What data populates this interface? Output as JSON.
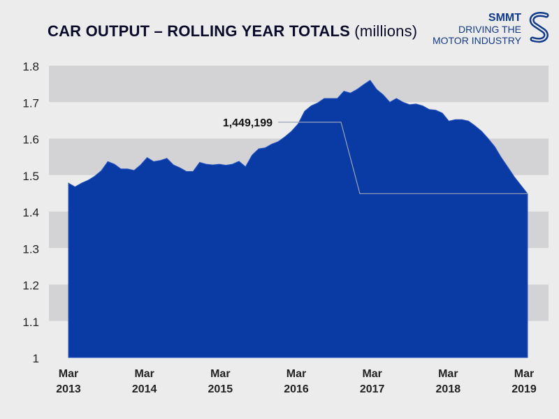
{
  "header": {
    "title_bold": "CAR OUTPUT – ROLLING YEAR TOTALS",
    "title_light": "(millions)"
  },
  "logo": {
    "name": "SMMT",
    "tagline_line1": "DRIVING THE",
    "tagline_line2": "MOTOR INDUSTRY"
  },
  "colors": {
    "area": "#0a3aa3",
    "band": "#d3d3d6",
    "background": "#ececec",
    "axis_text": "#222222",
    "logo": "#123a8c"
  },
  "chart_data": {
    "type": "area",
    "title": "CAR OUTPUT – ROLLING YEAR TOTALS (millions)",
    "ylim": [
      1.0,
      1.8
    ],
    "yticks": [
      "1",
      "1.1",
      "1.2",
      "1.3",
      "1.4",
      "1.5",
      "1.6",
      "1.7",
      "1.8"
    ],
    "xticks": [
      {
        "line1": "Mar",
        "line2": "2013"
      },
      {
        "line1": "Mar",
        "line2": "2014"
      },
      {
        "line1": "Mar",
        "line2": "2015"
      },
      {
        "line1": "Mar",
        "line2": "2016"
      },
      {
        "line1": "Mar",
        "line2": "2017"
      },
      {
        "line1": "Mar",
        "line2": "2018"
      },
      {
        "line1": "Mar",
        "line2": "2019"
      }
    ],
    "grid": "alternating horizontal bands",
    "annotation": {
      "label": "1,449,199",
      "value": 1.449199
    },
    "series": [
      {
        "values": [
          1.478,
          1.468,
          1.478,
          1.486,
          1.497,
          1.512,
          1.537,
          1.53,
          1.517,
          1.517,
          1.513,
          1.528,
          1.548,
          1.537,
          1.54,
          1.546,
          1.528,
          1.52,
          1.51,
          1.51,
          1.535,
          1.53,
          1.528,
          1.53,
          1.527,
          1.53,
          1.538,
          1.523,
          1.555,
          1.572,
          1.575,
          1.585,
          1.592,
          1.605,
          1.62,
          1.64,
          1.675,
          1.69,
          1.698,
          1.71,
          1.71,
          1.71,
          1.73,
          1.725,
          1.735,
          1.748,
          1.76,
          1.735,
          1.72,
          1.7,
          1.71,
          1.7,
          1.693,
          1.695,
          1.69,
          1.68,
          1.678,
          1.67,
          1.648,
          1.652,
          1.652,
          1.648,
          1.635,
          1.62,
          1.6,
          1.578,
          1.548,
          1.522,
          1.495,
          1.472,
          1.449
        ]
      }
    ]
  }
}
